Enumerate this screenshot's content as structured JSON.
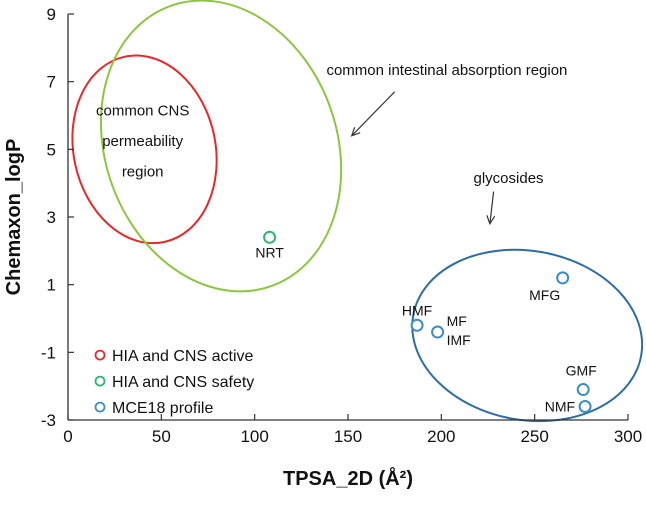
{
  "chart_data": {
    "type": "scatter",
    "title": "",
    "xlabel": "TPSA_2D (Å²)",
    "ylabel": "Chemaxon_logP",
    "xlim": [
      0,
      300
    ],
    "ylim": [
      -3,
      9
    ],
    "xticks": [
      "0",
      "50",
      "100",
      "150",
      "200",
      "250",
      "300"
    ],
    "yticks": [
      "-3",
      "-1",
      "1",
      "3",
      "5",
      "7",
      "9"
    ],
    "grid": false,
    "legend_position": "bottom-left",
    "series": [
      {
        "name": "HIA and CNS active",
        "color": "#e8272a",
        "points": []
      },
      {
        "name": "HIA and CNS safety",
        "color": "#2bb673",
        "points": [
          {
            "label": "NRT",
            "x": 108,
            "y": 2.4
          }
        ]
      },
      {
        "name": "MCE18 profile",
        "color": "#3b8ccc",
        "points": [
          {
            "label": "MFG",
            "x": 265,
            "y": 1.2
          },
          {
            "label": "HMF",
            "x": 187,
            "y": -0.2
          },
          {
            "label": "MF",
            "x": 198,
            "y": -0.4
          },
          {
            "label": "IMF",
            "x": 198,
            "y": -0.4
          },
          {
            "label": "GMF",
            "x": 276,
            "y": -2.1
          },
          {
            "label": "NMF",
            "x": 277,
            "y": -2.6
          }
        ]
      }
    ],
    "regions": [
      {
        "name": "common CNS permeability region",
        "color": "#e8272a",
        "cx": 41,
        "cy": 5.0,
        "rx": 38,
        "ry": 2.8,
        "rotate_deg": -12
      },
      {
        "name": "common intestinal absorption region",
        "color": "#8cc63f",
        "cx": 82,
        "cy": 5.1,
        "rx": 62,
        "ry": 4.4,
        "rotate_deg": -20
      },
      {
        "name": "glycosides",
        "color": "#2e6ca4",
        "cx": 246,
        "cy": -0.5,
        "rx": 62,
        "ry": 2.5,
        "rotate_deg": 10
      }
    ],
    "annotations": [
      {
        "text": "common CNS",
        "x": 40,
        "y": 6.0
      },
      {
        "text": "permeability",
        "x": 40,
        "y": 5.1
      },
      {
        "text": "region",
        "x": 40,
        "y": 4.2
      },
      {
        "text": "common intestinal absorption region",
        "x": 203,
        "y": 7.2
      },
      {
        "text": "glycosides",
        "x": 236,
        "y": 4.0
      }
    ]
  }
}
